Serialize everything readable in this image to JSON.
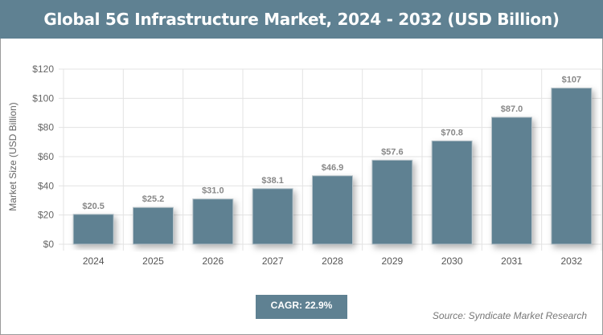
{
  "chart_data": {
    "type": "bar",
    "title": "Global 5G Infrastructure Market, 2024 - 2032 (USD Billion)",
    "xlabel": "",
    "ylabel": "Market Size (USD Billion)",
    "categories": [
      "2024",
      "2025",
      "2026",
      "2027",
      "2028",
      "2029",
      "2030",
      "2031",
      "2032"
    ],
    "values": [
      20.5,
      25.2,
      31.0,
      38.1,
      46.9,
      57.6,
      70.8,
      87.0,
      107
    ],
    "data_labels": [
      "$20.5",
      "$25.2",
      "$31.0",
      "$38.1",
      "$46.9",
      "$57.6",
      "$70.8",
      "$87.0",
      "$107"
    ],
    "ylim": [
      0,
      120
    ],
    "yticks": [
      0,
      20,
      40,
      60,
      80,
      100,
      120
    ],
    "ytick_labels": [
      "$0",
      "$20",
      "$40",
      "$60",
      "$80",
      "$100",
      "$120"
    ],
    "grid": true,
    "bar_color": "#5f8192"
  },
  "cagr": "CAGR: 22.9%",
  "source": "Source: Syndicate Market Research"
}
